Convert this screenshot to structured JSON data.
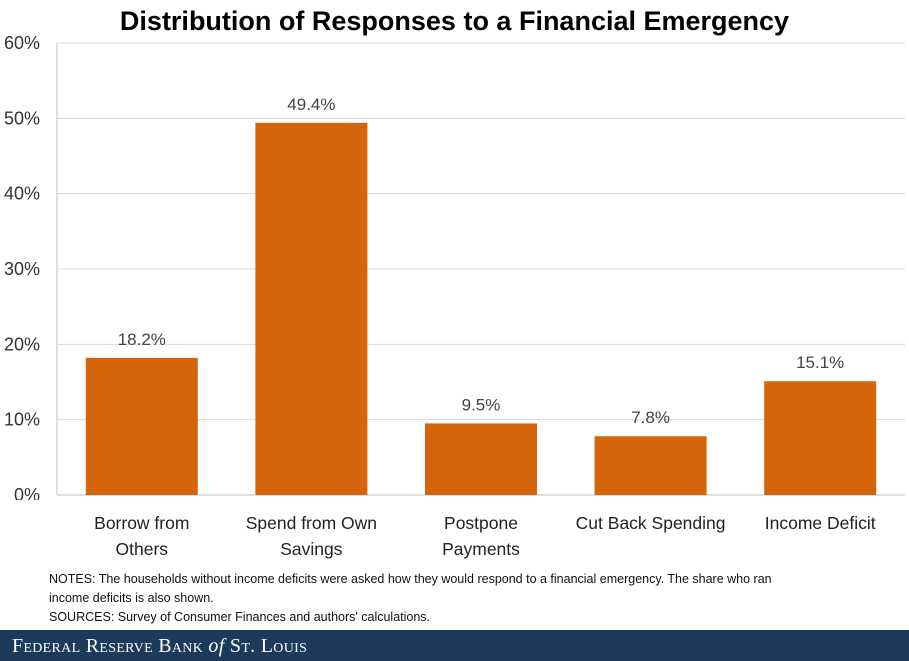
{
  "chart_data": {
    "type": "bar",
    "title": "Distribution of Responses to a Financial Emergency",
    "categories": [
      [
        "Borrow from",
        "Others"
      ],
      [
        "Spend from Own",
        "Savings"
      ],
      [
        "Postpone",
        "Payments"
      ],
      [
        "Cut Back Spending"
      ],
      [
        "Income Deficit"
      ]
    ],
    "values": [
      18.2,
      49.4,
      9.5,
      7.8,
      15.1
    ],
    "data_labels": [
      "18.2%",
      "49.4%",
      "9.5%",
      "7.8%",
      "15.1%"
    ],
    "y_ticks": [
      "0%",
      "10%",
      "20%",
      "30%",
      "40%",
      "50%",
      "60%"
    ],
    "ylim": [
      0,
      60
    ],
    "grid": true,
    "bar_color": "#d4650a"
  },
  "notes": {
    "line1": "NOTES: The households without income deficits were asked how they would respond to a financial emergency. The share who ran",
    "line2": "income deficits is also shown.",
    "sources": "SOURCES: Survey of Consumer Finances and authors' calculations."
  },
  "footer": {
    "part1": "Federal Reserve Bank ",
    "part2": "of",
    "part3": " St. Louis"
  }
}
